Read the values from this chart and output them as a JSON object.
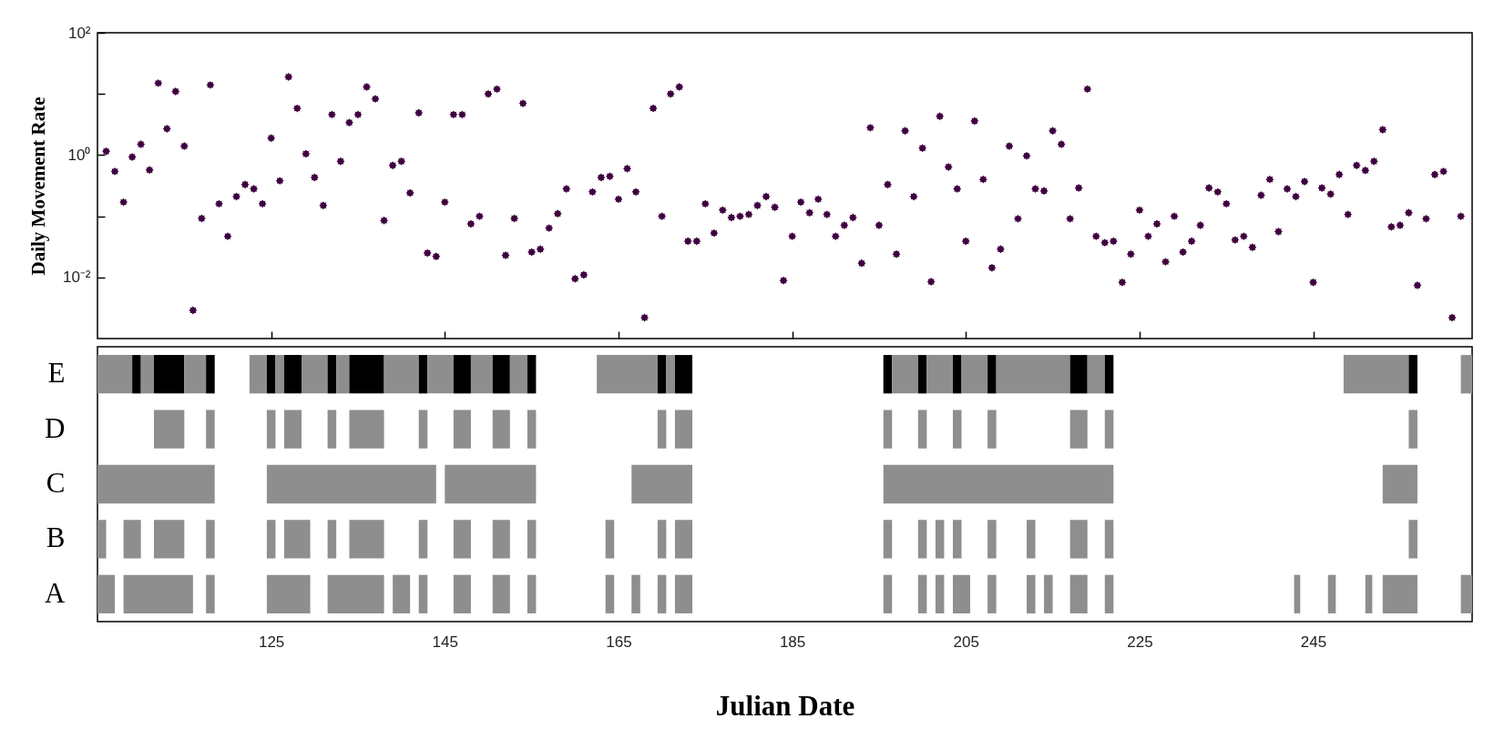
{
  "chart_data": [
    {
      "type": "scatter",
      "ylabel": "Daily Movement Rate",
      "color": "#3f0040",
      "marker": "star",
      "log": true,
      "tick_labels": "y",
      "xlim": [
        105,
        263.3
      ],
      "xticks": [
        125,
        145,
        165,
        185,
        205,
        225,
        245
      ],
      "ylim": [
        0.001,
        100
      ],
      "yticks": [
        {
          "value": 100,
          "label": "10²"
        },
        {
          "value": 10,
          "label": null
        },
        {
          "value": 1,
          "label": "10⁰"
        },
        {
          "value": 0.1,
          "label": null
        },
        {
          "value": 0.01,
          "label": "10⁻²"
        }
      ],
      "x": [
        106,
        107,
        108,
        109,
        110,
        111,
        112,
        113,
        114,
        115,
        116,
        117,
        118,
        119,
        120,
        121,
        122,
        123,
        124,
        125,
        126,
        127,
        128,
        129,
        130,
        131,
        132,
        133,
        134,
        135,
        136,
        137,
        138,
        139,
        140,
        141,
        142,
        143,
        144,
        145,
        146,
        147,
        148,
        149,
        150,
        151,
        152,
        153,
        154,
        155,
        156,
        157,
        158,
        159,
        160,
        161,
        162,
        163,
        164,
        165,
        166,
        167,
        168,
        169,
        170,
        171,
        172,
        173,
        174,
        175,
        176,
        177,
        178,
        179,
        180,
        181,
        182,
        183,
        184,
        185,
        186,
        187,
        188,
        189,
        190,
        191,
        192,
        193,
        194,
        195,
        196,
        197,
        198,
        199,
        200,
        201,
        202,
        203,
        204,
        205,
        206,
        207,
        208,
        209,
        210,
        211,
        212,
        213,
        214,
        215,
        216,
        217,
        218,
        219,
        220,
        221,
        222,
        223,
        224,
        225,
        226,
        227,
        228,
        229,
        230,
        231,
        232,
        233,
        234,
        235,
        236,
        237,
        238,
        239,
        240,
        241,
        242,
        243,
        244,
        245,
        246,
        247,
        248,
        249,
        250,
        251,
        252,
        253,
        254,
        255,
        256,
        257,
        258,
        259,
        260,
        261,
        262
      ],
      "values": [
        1.15,
        0.54,
        0.17,
        0.93,
        1.5,
        0.57,
        15,
        2.7,
        11,
        1.4,
        0.0029,
        0.092,
        14,
        0.16,
        0.047,
        0.21,
        0.33,
        0.28,
        0.16,
        1.9,
        0.38,
        19,
        5.8,
        1.05,
        0.43,
        0.15,
        4.6,
        0.79,
        3.4,
        4.6,
        13,
        8.3,
        0.085,
        0.68,
        0.79,
        0.24,
        4.9,
        0.025,
        0.022,
        0.17,
        4.6,
        4.6,
        0.075,
        0.1,
        10,
        12,
        0.023,
        0.092,
        7,
        0.026,
        0.029,
        0.064,
        0.11,
        0.28,
        0.0095,
        0.011,
        0.25,
        0.43,
        0.45,
        0.19,
        0.6,
        0.25,
        0.0022,
        5.8,
        0.1,
        10,
        13,
        0.039,
        0.039,
        0.16,
        0.053,
        0.126,
        0.095,
        0.1,
        0.107,
        0.15,
        0.21,
        0.14,
        0.0089,
        0.047,
        0.17,
        0.114,
        0.19,
        0.107,
        0.047,
        0.071,
        0.095,
        0.017,
        2.8,
        0.071,
        0.33,
        0.024,
        2.5,
        0.21,
        1.3,
        0.0085,
        4.3,
        0.64,
        0.28,
        0.039,
        3.6,
        0.4,
        0.0144,
        0.029,
        1.4,
        0.091,
        0.97,
        0.28,
        0.26,
        2.5,
        1.5,
        0.091,
        0.29,
        12,
        0.047,
        0.037,
        0.039,
        0.0083,
        0.024,
        0.126,
        0.047,
        0.075,
        0.018,
        0.1,
        0.026,
        0.039,
        0.071,
        0.29,
        0.25,
        0.16,
        0.041,
        0.047,
        0.031,
        0.22,
        0.4,
        0.056,
        0.28,
        0.21,
        0.37,
        0.0083,
        0.29,
        0.23,
        0.48,
        0.107,
        0.68,
        0.56,
        0.79,
        2.6,
        0.067,
        0.071,
        0.114,
        0.0074,
        0.091,
        0.48,
        0.54,
        0.0022,
        0.1
      ]
    },
    {
      "type": "bar",
      "orientation": "horizontal",
      "xlabel": "Julian Date",
      "categories": [
        "E",
        "D",
        "C",
        "B",
        "A"
      ],
      "xlim": [
        105,
        263.3
      ],
      "xticks": [
        125,
        145,
        165,
        185,
        205,
        225,
        245
      ],
      "series": [
        {
          "base": [
            105,
            111.5,
            105,
            105,
            105
          ],
          "values": [
            4,
            3.5,
            13.5,
            1,
            2
          ],
          "colors": [
            "#8e8e8e",
            "#8e8e8e",
            "#8e8e8e",
            "#8e8e8e",
            "#8e8e8e"
          ]
        },
        {
          "base": [
            109,
            117.5,
            124.5,
            108,
            108
          ],
          "values": [
            1,
            1,
            19.5,
            2,
            8
          ],
          "colors": [
            "#000000",
            "#8e8e8e",
            "#8e8e8e",
            "#8e8e8e",
            "#8e8e8e"
          ]
        },
        {
          "base": [
            110,
            124.5,
            145,
            111.5,
            117.5
          ],
          "values": [
            1.5,
            1,
            10.5,
            3.5,
            1
          ],
          "colors": [
            "#8e8e8e",
            "#8e8e8e",
            "#8e8e8e",
            "#8e8e8e",
            "#8e8e8e"
          ]
        },
        {
          "base": [
            111.5,
            126.5,
            166.5,
            117.5,
            124.5
          ],
          "values": [
            3.5,
            2,
            7,
            1,
            5
          ],
          "colors": [
            "#000000",
            "#8e8e8e",
            "#8e8e8e",
            "#8e8e8e",
            "#8e8e8e"
          ]
        },
        {
          "base": [
            115,
            131.5,
            195.5,
            124.5,
            131.5
          ],
          "values": [
            2.5,
            1,
            26.5,
            1,
            6.5
          ],
          "colors": [
            "#8e8e8e",
            "#8e8e8e",
            "#8e8e8e",
            "#8e8e8e",
            "#8e8e8e"
          ]
        },
        {
          "base": [
            117.5,
            134,
            253,
            126.5,
            139
          ],
          "values": [
            1,
            4,
            4,
            3,
            2
          ],
          "colors": [
            "#000000",
            "#8e8e8e",
            "#8e8e8e",
            "#8e8e8e",
            "#8e8e8e"
          ]
        },
        {
          "base": [
            122.5,
            142,
            null,
            131.5,
            142
          ],
          "values": [
            2,
            1,
            null,
            1,
            1
          ],
          "colors": [
            "#8e8e8e",
            "#8e8e8e",
            null,
            "#8e8e8e",
            "#8e8e8e"
          ]
        },
        {
          "base": [
            124.5,
            146,
            null,
            134,
            146
          ],
          "values": [
            1,
            2,
            null,
            4,
            2
          ],
          "colors": [
            "#000000",
            "#8e8e8e",
            null,
            "#8e8e8e",
            "#8e8e8e"
          ]
        },
        {
          "base": [
            125.5,
            150.5,
            null,
            142,
            150.5
          ],
          "values": [
            1,
            2,
            null,
            1,
            2
          ],
          "colors": [
            "#8e8e8e",
            "#8e8e8e",
            null,
            "#8e8e8e",
            "#8e8e8e"
          ]
        },
        {
          "base": [
            126.5,
            154.5,
            null,
            146,
            154.5
          ],
          "values": [
            2,
            1,
            null,
            2,
            1
          ],
          "colors": [
            "#000000",
            "#8e8e8e",
            null,
            "#8e8e8e",
            "#8e8e8e"
          ]
        },
        {
          "base": [
            128.5,
            169.5,
            null,
            150.5,
            163.5
          ],
          "values": [
            3,
            1,
            null,
            2,
            1
          ],
          "colors": [
            "#8e8e8e",
            "#8e8e8e",
            null,
            "#8e8e8e",
            "#8e8e8e"
          ]
        },
        {
          "base": [
            131.5,
            171.5,
            null,
            154.5,
            166.5
          ],
          "values": [
            1,
            2,
            null,
            1,
            1
          ],
          "colors": [
            "#000000",
            "#8e8e8e",
            null,
            "#8e8e8e",
            "#8e8e8e"
          ]
        },
        {
          "base": [
            132.5,
            195.5,
            null,
            163.5,
            169.5
          ],
          "values": [
            1.5,
            1,
            null,
            1,
            1
          ],
          "colors": [
            "#8e8e8e",
            "#8e8e8e",
            null,
            "#8e8e8e",
            "#8e8e8e"
          ]
        },
        {
          "base": [
            134,
            199.5,
            null,
            169.5,
            171.5
          ],
          "values": [
            4,
            1,
            null,
            1,
            2
          ],
          "colors": [
            "#000000",
            "#8e8e8e",
            null,
            "#8e8e8e",
            "#8e8e8e"
          ]
        },
        {
          "base": [
            138,
            203.5,
            null,
            171.5,
            195.5
          ],
          "values": [
            4,
            1,
            null,
            2,
            1
          ],
          "colors": [
            "#8e8e8e",
            "#8e8e8e",
            null,
            "#8e8e8e",
            "#8e8e8e"
          ]
        },
        {
          "base": [
            142,
            207.5,
            null,
            195.5,
            199.5
          ],
          "values": [
            1,
            1,
            null,
            1,
            1
          ],
          "colors": [
            "#000000",
            "#8e8e8e",
            null,
            "#8e8e8e",
            "#8e8e8e"
          ]
        },
        {
          "base": [
            143,
            217,
            null,
            199.5,
            201.5
          ],
          "values": [
            3,
            2,
            null,
            1,
            1
          ],
          "colors": [
            "#8e8e8e",
            "#8e8e8e",
            null,
            "#8e8e8e",
            "#8e8e8e"
          ]
        },
        {
          "base": [
            146,
            221,
            null,
            201.5,
            203.5
          ],
          "values": [
            2,
            1,
            null,
            1,
            2
          ],
          "colors": [
            "#000000",
            "#8e8e8e",
            null,
            "#8e8e8e",
            "#8e8e8e"
          ]
        },
        {
          "base": [
            148,
            256,
            null,
            203.5,
            207.5
          ],
          "values": [
            2.5,
            1,
            null,
            1,
            1
          ],
          "colors": [
            "#8e8e8e",
            "#8e8e8e",
            null,
            "#8e8e8e",
            "#8e8e8e"
          ]
        },
        {
          "base": [
            150.5,
            null,
            null,
            207.5,
            212
          ],
          "values": [
            2,
            null,
            null,
            1,
            1
          ],
          "colors": [
            "#000000",
            null,
            null,
            "#8e8e8e",
            "#8e8e8e"
          ]
        },
        {
          "base": [
            152.5,
            null,
            null,
            212,
            214
          ],
          "values": [
            2,
            null,
            null,
            1,
            1
          ],
          "colors": [
            "#8e8e8e",
            null,
            null,
            "#8e8e8e",
            "#8e8e8e"
          ]
        },
        {
          "base": [
            154.5,
            null,
            null,
            217,
            217
          ],
          "values": [
            1,
            null,
            null,
            2,
            2
          ],
          "colors": [
            "#000000",
            null,
            null,
            "#8e8e8e",
            "#8e8e8e"
          ]
        },
        {
          "base": [
            162.5,
            null,
            null,
            221,
            221
          ],
          "values": [
            7,
            null,
            null,
            1,
            1
          ],
          "colors": [
            "#8e8e8e",
            null,
            null,
            "#8e8e8e",
            "#8e8e8e"
          ]
        },
        {
          "base": [
            169.5,
            null,
            null,
            256,
            242.8
          ],
          "values": [
            1,
            null,
            null,
            1,
            0.7
          ],
          "colors": [
            "#000000",
            null,
            null,
            "#8e8e8e",
            "#8e8e8e"
          ]
        },
        {
          "base": [
            170.5,
            null,
            null,
            null,
            246.7
          ],
          "values": [
            1,
            null,
            null,
            null,
            0.9
          ],
          "colors": [
            "#8e8e8e",
            null,
            null,
            null,
            "#8e8e8e"
          ]
        },
        {
          "base": [
            171.5,
            null,
            null,
            null,
            251
          ],
          "values": [
            2,
            null,
            null,
            null,
            0.8
          ],
          "colors": [
            "#000000",
            null,
            null,
            null,
            "#8e8e8e"
          ]
        },
        {
          "base": [
            195.5,
            null,
            null,
            null,
            253
          ],
          "values": [
            1,
            null,
            null,
            null,
            4
          ],
          "colors": [
            "#000000",
            null,
            null,
            null,
            "#8e8e8e"
          ]
        },
        {
          "base": [
            196.5,
            null,
            null,
            null,
            262
          ],
          "values": [
            3,
            null,
            null,
            null,
            1.3
          ],
          "colors": [
            "#8e8e8e",
            null,
            null,
            null,
            "#8e8e8e"
          ]
        },
        {
          "base": [
            199.5,
            null,
            null,
            null,
            null
          ],
          "values": [
            1,
            null,
            null,
            null,
            null
          ],
          "colors": [
            "#000000",
            null,
            null,
            null,
            null
          ]
        },
        {
          "base": [
            200.5,
            null,
            null,
            null,
            null
          ],
          "values": [
            3,
            null,
            null,
            null,
            null
          ],
          "colors": [
            "#8e8e8e",
            null,
            null,
            null,
            null
          ]
        },
        {
          "base": [
            203.5,
            null,
            null,
            null,
            null
          ],
          "values": [
            1,
            null,
            null,
            null,
            null
          ],
          "colors": [
            "#000000",
            null,
            null,
            null,
            null
          ]
        },
        {
          "base": [
            204.5,
            null,
            null,
            null,
            null
          ],
          "values": [
            3,
            null,
            null,
            null,
            null
          ],
          "colors": [
            "#8e8e8e",
            null,
            null,
            null,
            null
          ]
        },
        {
          "base": [
            207.5,
            null,
            null,
            null,
            null
          ],
          "values": [
            1,
            null,
            null,
            null,
            null
          ],
          "colors": [
            "#000000",
            null,
            null,
            null,
            null
          ]
        },
        {
          "base": [
            208.5,
            null,
            null,
            null,
            null
          ],
          "values": [
            8.5,
            null,
            null,
            null,
            null
          ],
          "colors": [
            "#8e8e8e",
            null,
            null,
            null,
            null
          ]
        },
        {
          "base": [
            217,
            null,
            null,
            null,
            null
          ],
          "values": [
            2,
            null,
            null,
            null,
            null
          ],
          "colors": [
            "#000000",
            null,
            null,
            null,
            null
          ]
        },
        {
          "base": [
            219,
            null,
            null,
            null,
            null
          ],
          "values": [
            2,
            null,
            null,
            null,
            null
          ],
          "colors": [
            "#8e8e8e",
            null,
            null,
            null,
            null
          ]
        },
        {
          "base": [
            221,
            null,
            null,
            null,
            null
          ],
          "values": [
            1,
            null,
            null,
            null,
            null
          ],
          "colors": [
            "#000000",
            null,
            null,
            null,
            null
          ]
        },
        {
          "base": [
            248.5,
            null,
            null,
            null,
            null
          ],
          "values": [
            7.5,
            null,
            null,
            null,
            null
          ],
          "colors": [
            "#8e8e8e",
            null,
            null,
            null,
            null
          ]
        },
        {
          "base": [
            256,
            null,
            null,
            null,
            null
          ],
          "values": [
            1,
            null,
            null,
            null,
            null
          ],
          "colors": [
            "#000000",
            null,
            null,
            null,
            null
          ]
        },
        {
          "base": [
            262,
            null,
            null,
            null,
            null
          ],
          "values": [
            1.3,
            null,
            null,
            null,
            null
          ],
          "colors": [
            "#8e8e8e",
            null,
            null,
            null,
            null
          ]
        }
      ]
    }
  ]
}
